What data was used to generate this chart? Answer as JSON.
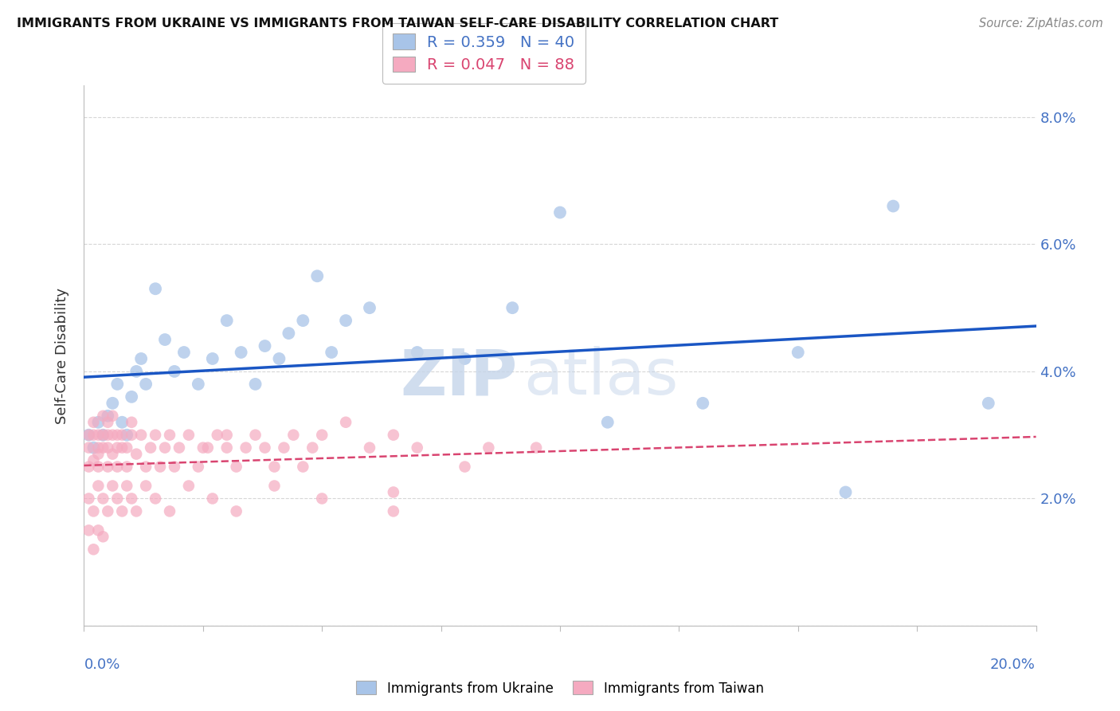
{
  "title": "IMMIGRANTS FROM UKRAINE VS IMMIGRANTS FROM TAIWAN SELF-CARE DISABILITY CORRELATION CHART",
  "source": "Source: ZipAtlas.com",
  "ylabel": "Self-Care Disability",
  "xlim": [
    0.0,
    0.2
  ],
  "ylim": [
    0.0,
    0.085
  ],
  "ukraine_R": 0.359,
  "ukraine_N": 40,
  "taiwan_R": 0.047,
  "taiwan_N": 88,
  "ukraine_color": "#a8c4e8",
  "taiwan_color": "#f5aac0",
  "ukraine_line_color": "#1a56c4",
  "taiwan_line_color": "#d94470",
  "ukraine_scatter_x": [
    0.001,
    0.002,
    0.003,
    0.004,
    0.005,
    0.006,
    0.007,
    0.008,
    0.009,
    0.01,
    0.011,
    0.012,
    0.013,
    0.015,
    0.017,
    0.019,
    0.021,
    0.024,
    0.027,
    0.03,
    0.033,
    0.036,
    0.038,
    0.041,
    0.043,
    0.046,
    0.049,
    0.052,
    0.055,
    0.06,
    0.07,
    0.08,
    0.09,
    0.1,
    0.11,
    0.13,
    0.15,
    0.16,
    0.17,
    0.19
  ],
  "ukraine_scatter_y": [
    0.03,
    0.028,
    0.032,
    0.03,
    0.033,
    0.035,
    0.038,
    0.032,
    0.03,
    0.036,
    0.04,
    0.042,
    0.038,
    0.053,
    0.045,
    0.04,
    0.043,
    0.038,
    0.042,
    0.048,
    0.043,
    0.038,
    0.044,
    0.042,
    0.046,
    0.048,
    0.055,
    0.043,
    0.048,
    0.05,
    0.043,
    0.042,
    0.05,
    0.065,
    0.032,
    0.035,
    0.043,
    0.021,
    0.066,
    0.035
  ],
  "taiwan_scatter_x": [
    0.001,
    0.001,
    0.001,
    0.002,
    0.002,
    0.002,
    0.003,
    0.003,
    0.003,
    0.003,
    0.004,
    0.004,
    0.004,
    0.005,
    0.005,
    0.005,
    0.005,
    0.006,
    0.006,
    0.006,
    0.007,
    0.007,
    0.007,
    0.008,
    0.008,
    0.009,
    0.009,
    0.01,
    0.01,
    0.011,
    0.012,
    0.013,
    0.014,
    0.015,
    0.016,
    0.017,
    0.018,
    0.019,
    0.02,
    0.022,
    0.024,
    0.026,
    0.028,
    0.03,
    0.032,
    0.034,
    0.036,
    0.038,
    0.04,
    0.042,
    0.044,
    0.046,
    0.048,
    0.05,
    0.055,
    0.06,
    0.065,
    0.07,
    0.08,
    0.085,
    0.001,
    0.002,
    0.003,
    0.004,
    0.005,
    0.006,
    0.007,
    0.008,
    0.009,
    0.01,
    0.011,
    0.013,
    0.015,
    0.018,
    0.022,
    0.027,
    0.032,
    0.04,
    0.05,
    0.065,
    0.001,
    0.002,
    0.003,
    0.004,
    0.025,
    0.03,
    0.065,
    0.095
  ],
  "taiwan_scatter_y": [
    0.03,
    0.025,
    0.028,
    0.03,
    0.026,
    0.032,
    0.028,
    0.025,
    0.03,
    0.027,
    0.03,
    0.028,
    0.033,
    0.028,
    0.025,
    0.03,
    0.032,
    0.03,
    0.027,
    0.033,
    0.028,
    0.03,
    0.025,
    0.028,
    0.03,
    0.025,
    0.028,
    0.03,
    0.032,
    0.027,
    0.03,
    0.025,
    0.028,
    0.03,
    0.025,
    0.028,
    0.03,
    0.025,
    0.028,
    0.03,
    0.025,
    0.028,
    0.03,
    0.028,
    0.025,
    0.028,
    0.03,
    0.028,
    0.025,
    0.028,
    0.03,
    0.025,
    0.028,
    0.03,
    0.032,
    0.028,
    0.03,
    0.028,
    0.025,
    0.028,
    0.02,
    0.018,
    0.022,
    0.02,
    0.018,
    0.022,
    0.02,
    0.018,
    0.022,
    0.02,
    0.018,
    0.022,
    0.02,
    0.018,
    0.022,
    0.02,
    0.018,
    0.022,
    0.02,
    0.018,
    0.015,
    0.012,
    0.015,
    0.014,
    0.028,
    0.03,
    0.021,
    0.028
  ]
}
